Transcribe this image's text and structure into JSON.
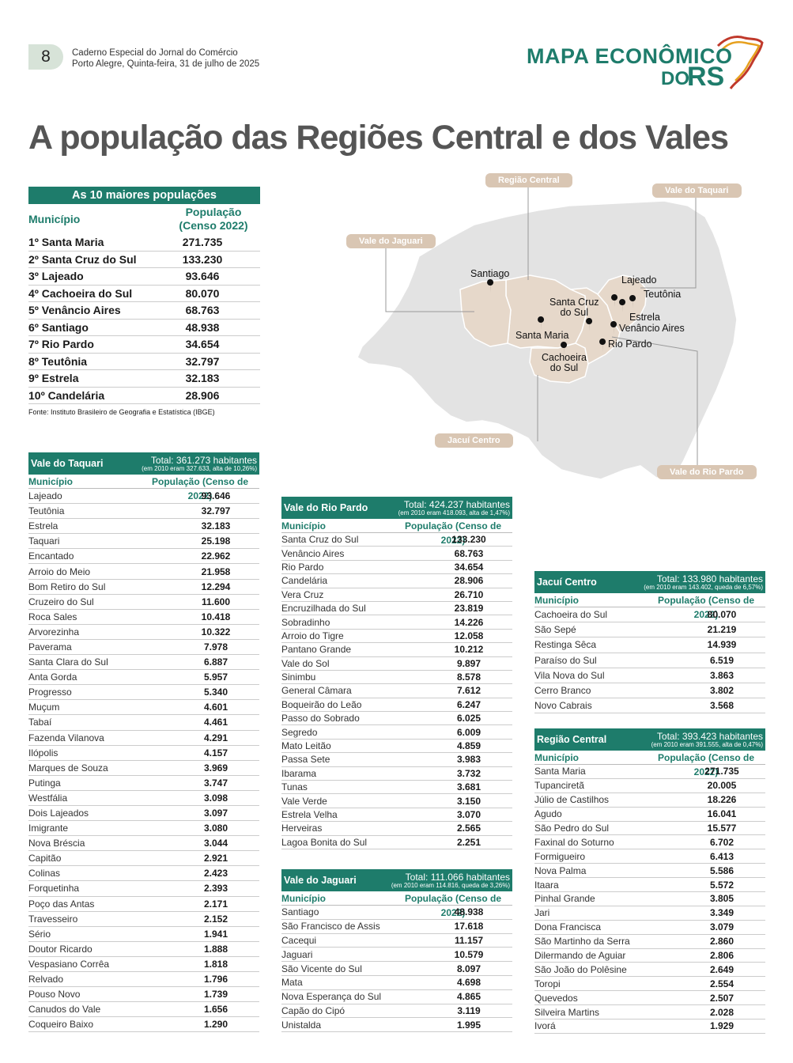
{
  "header": {
    "page_number": "8",
    "publication": "Caderno Especial do Jornal do Comércio",
    "date_line": "Porto Alegre, Quinta-feira, 31 de julho de 2025",
    "logo_line1": "MAPA ECONÔMICO",
    "logo_do": "DO",
    "logo_rs": "RS"
  },
  "title": "A população das Regiões Central e dos Vales",
  "top10": {
    "heading": "As 10 maiores populações",
    "col1": "Município",
    "col2a": "População",
    "col2b": "(Censo 2022)",
    "rows": [
      {
        "name": "1º Santa Maria",
        "value": "271.735"
      },
      {
        "name": "2º Santa Cruz do Sul",
        "value": "133.230"
      },
      {
        "name": "3º Lajeado",
        "value": "93.646"
      },
      {
        "name": "4º Cachoeira do Sul",
        "value": "80.070"
      },
      {
        "name": "5º Venâncio Aires",
        "value": "68.763"
      },
      {
        "name": "6º Santiago",
        "value": "48.938"
      },
      {
        "name": "7º Rio Pardo",
        "value": "34.654"
      },
      {
        "name": "8º Teutônia",
        "value": "32.797"
      },
      {
        "name": "9º Estrela",
        "value": "32.183"
      },
      {
        "name": "10º Candelária",
        "value": "28.906"
      }
    ],
    "source": "Fonte: Instituto Brasileiro de Geografia e Estatística (IBGE)"
  },
  "map": {
    "labels": {
      "central": "Região Central",
      "taquari": "Vale do Taquari",
      "jaguari": "Vale do Jaguari",
      "jacui": "Jacuí Centro",
      "rio_pardo": "Vale do Rio Pardo"
    },
    "cities": {
      "santiago": "Santiago",
      "lajeado": "Lajeado",
      "teutonia": "Teutônia",
      "santa_cruz_1": "Santa Cruz",
      "santa_cruz_2": "do Sul",
      "estrela": "Estrela",
      "venancio": "Venâncio Aires",
      "santa_maria": "Santa Maria",
      "rio_pardo": "Rio Pardo",
      "cachoeira_1": "Cachoeira",
      "cachoeira_2": "do Sul"
    },
    "colors": {
      "region": "#e6d8ca",
      "state": "#e3e3e3",
      "label": "#d9c6b3"
    }
  },
  "regions": {
    "col1": "Município",
    "col2": "População (Censo de 2022)",
    "taquari": {
      "name": "Vale do Taquari",
      "total": "Total: 361.273 habitantes",
      "note": "(em 2010 eram 327.633, alta de 10,26%)",
      "rows": [
        [
          "Lajeado",
          "93.646"
        ],
        [
          "Teutônia",
          "32.797"
        ],
        [
          "Estrela",
          "32.183"
        ],
        [
          "Taquari",
          "25.198"
        ],
        [
          "Encantado",
          "22.962"
        ],
        [
          "Arroio do Meio",
          "21.958"
        ],
        [
          "Bom Retiro do Sul",
          "12.294"
        ],
        [
          "Cruzeiro do Sul",
          "11.600"
        ],
        [
          "Roca Sales",
          "10.418"
        ],
        [
          "Arvorezinha",
          "10.322"
        ],
        [
          "Paverama",
          "7.978"
        ],
        [
          "Santa Clara do Sul",
          "6.887"
        ],
        [
          "Anta Gorda",
          "5.957"
        ],
        [
          "Progresso",
          "5.340"
        ],
        [
          "Muçum",
          "4.601"
        ],
        [
          "Tabaí",
          "4.461"
        ],
        [
          "Fazenda Vilanova",
          "4.291"
        ],
        [
          "Ilópolis",
          "4.157"
        ],
        [
          "Marques de Souza",
          "3.969"
        ],
        [
          "Putinga",
          "3.747"
        ],
        [
          "Westfália",
          "3.098"
        ],
        [
          "Dois Lajeados",
          "3.097"
        ],
        [
          "Imigrante",
          "3.080"
        ],
        [
          "Nova Bréscia",
          "3.044"
        ],
        [
          "Capitão",
          "2.921"
        ],
        [
          "Colinas",
          "2.423"
        ],
        [
          "Forquetinha",
          "2.393"
        ],
        [
          "Poço das Antas",
          "2.171"
        ],
        [
          "Travesseiro",
          "2.152"
        ],
        [
          "Sério",
          "1.941"
        ],
        [
          "Doutor Ricardo",
          "1.888"
        ],
        [
          "Vespasiano Corrêa",
          "1.818"
        ],
        [
          "Relvado",
          "1.796"
        ],
        [
          "Pouso Novo",
          "1.739"
        ],
        [
          "Canudos do Vale",
          "1.656"
        ],
        [
          "Coqueiro Baixo",
          "1.290"
        ]
      ]
    },
    "rio_pardo": {
      "name": "Vale do Rio Pardo",
      "total": "Total: 424.237 habitantes",
      "note": "(em 2010 eram 418.093, alta de 1,47%)",
      "rows": [
        [
          "Santa Cruz do Sul",
          "133.230"
        ],
        [
          "Venâncio Aires",
          "68.763"
        ],
        [
          "Rio Pardo",
          "34.654"
        ],
        [
          "Candelária",
          "28.906"
        ],
        [
          "Vera Cruz",
          "26.710"
        ],
        [
          "Encruzilhada do Sul",
          "23.819"
        ],
        [
          "Sobradinho",
          "14.226"
        ],
        [
          "Arroio do Tigre",
          "12.058"
        ],
        [
          "Pantano Grande",
          "10.212"
        ],
        [
          "Vale do Sol",
          "9.897"
        ],
        [
          "Sinimbu",
          "8.578"
        ],
        [
          "General Câmara",
          "7.612"
        ],
        [
          "Boqueirão do Leão",
          "6.247"
        ],
        [
          "Passo do Sobrado",
          "6.025"
        ],
        [
          "Segredo",
          "6.009"
        ],
        [
          "Mato Leitão",
          "4.859"
        ],
        [
          "Passa Sete",
          "3.983"
        ],
        [
          "Ibarama",
          "3.732"
        ],
        [
          "Tunas",
          "3.681"
        ],
        [
          "Vale Verde",
          "3.150"
        ],
        [
          "Estrela Velha",
          "3.070"
        ],
        [
          "Herveiras",
          "2.565"
        ],
        [
          "Lagoa Bonita do Sul",
          "2.251"
        ]
      ]
    },
    "jaguari": {
      "name": "Vale do Jaguari",
      "total": "Total: 111.066 habitantes",
      "note": "(em 2010 eram 114.816, queda de 3,26%)",
      "rows": [
        [
          "Santiago",
          "48.938"
        ],
        [
          "São Francisco de Assis",
          "17.618"
        ],
        [
          "Cacequi",
          "11.157"
        ],
        [
          "Jaguari",
          "10.579"
        ],
        [
          "São Vicente do Sul",
          "8.097"
        ],
        [
          "Mata",
          "4.698"
        ],
        [
          "Nova Esperança do Sul",
          "4.865"
        ],
        [
          "Capão do Cipó",
          "3.119"
        ],
        [
          "Unistalda",
          "1.995"
        ]
      ]
    },
    "jacui": {
      "name": "Jacuí Centro",
      "total": "Total: 133.980 habitantes",
      "note": "(em 2010 eram 143.402, queda de 6,57%)",
      "rows": [
        [
          "Cachoeira do Sul",
          "80.070"
        ],
        [
          "São Sepé",
          "21.219"
        ],
        [
          "Restinga Sêca",
          "14.939"
        ],
        [
          "Paraíso do Sul",
          "6.519"
        ],
        [
          "Vila Nova do Sul",
          "3.863"
        ],
        [
          "Cerro Branco",
          "3.802"
        ],
        [
          "Novo Cabrais",
          "3.568"
        ]
      ]
    },
    "central": {
      "name": "Região Central",
      "total": "Total: 393.423 habitantes",
      "note": "(em 2010 eram 391.555, alta de 0,47%)",
      "rows": [
        [
          "Santa Maria",
          "271.735"
        ],
        [
          "Tupanciretã",
          "20.005"
        ],
        [
          "Júlio de Castilhos",
          "18.226"
        ],
        [
          "Agudo",
          "16.041"
        ],
        [
          "São Pedro do Sul",
          "15.577"
        ],
        [
          "Faxinal do Soturno",
          "6.702"
        ],
        [
          "Formigueiro",
          "6.413"
        ],
        [
          "Nova Palma",
          "5.586"
        ],
        [
          "Itaara",
          "5.572"
        ],
        [
          "Pinhal Grande",
          "3.805"
        ],
        [
          "Jari",
          "3.349"
        ],
        [
          "Dona Francisca",
          "3.079"
        ],
        [
          "São Martinho da Serra",
          "2.860"
        ],
        [
          "Dilermando de Aguiar",
          "2.806"
        ],
        [
          "São João do Polêsine",
          "2.649"
        ],
        [
          "Toropi",
          "2.554"
        ],
        [
          "Quevedos",
          "2.507"
        ],
        [
          "Silveira Martins",
          "2.028"
        ],
        [
          "Ivorá",
          "1.929"
        ]
      ]
    }
  }
}
